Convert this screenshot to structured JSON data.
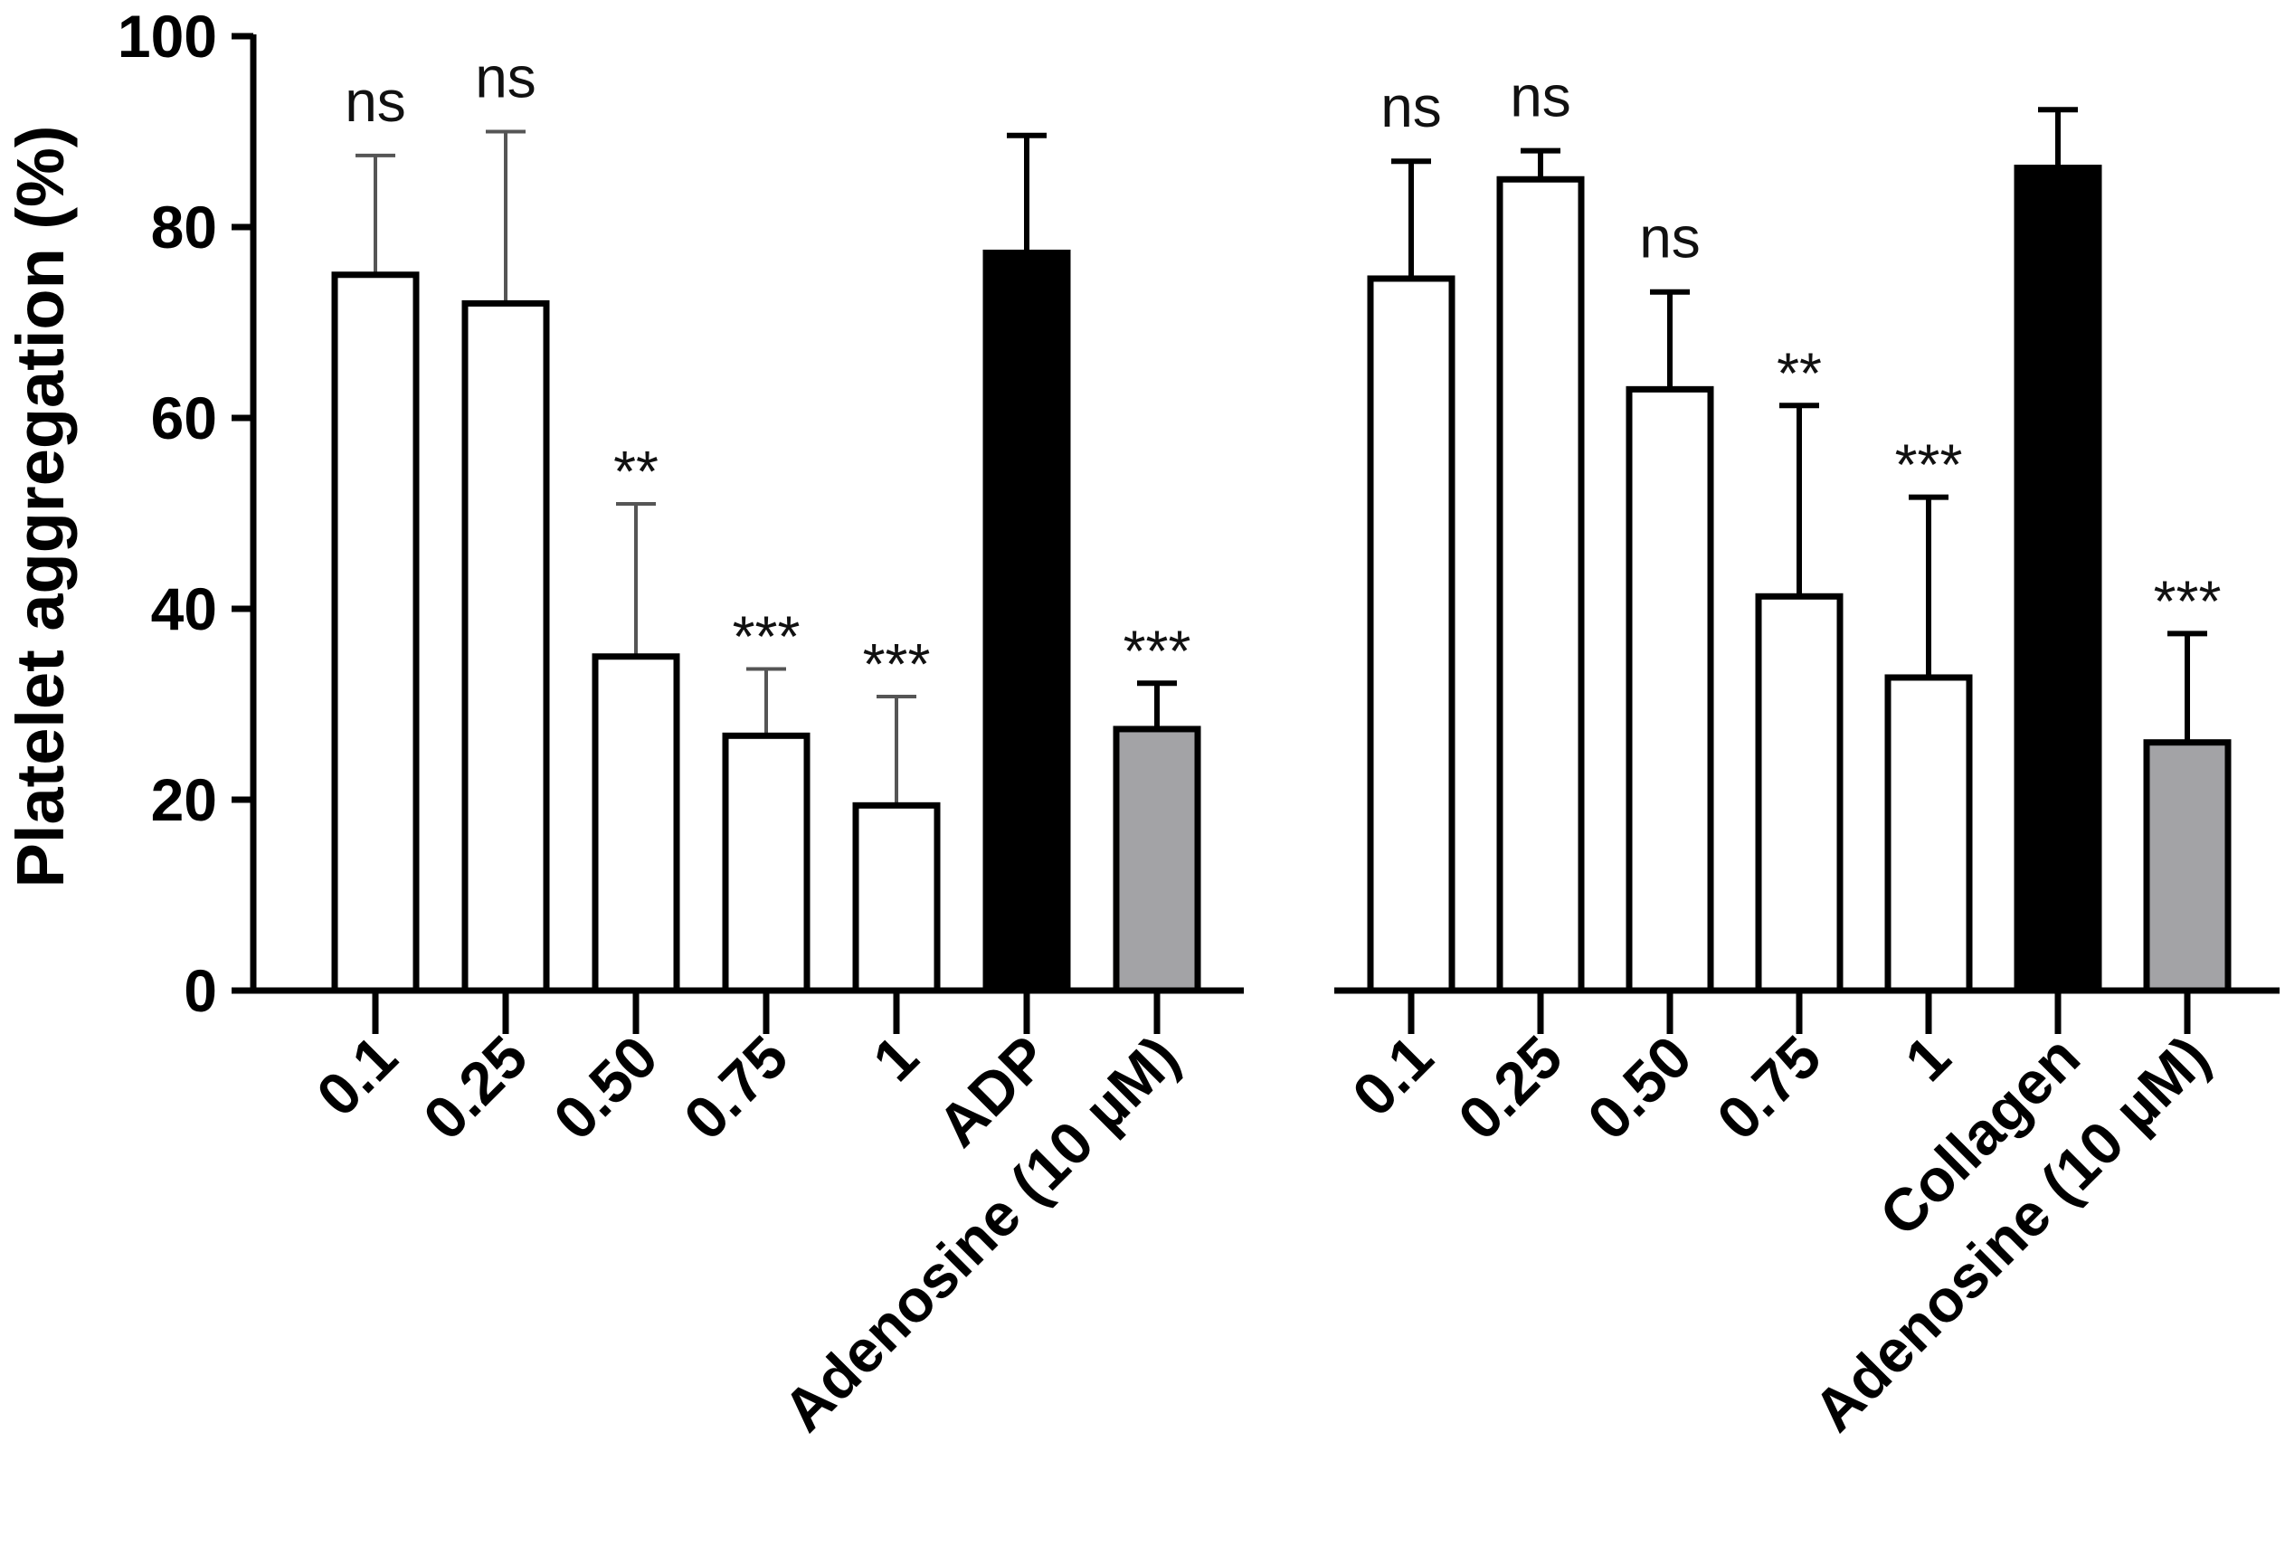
{
  "chart_data": [
    {
      "type": "bar",
      "panel": "left",
      "ylabel": "Platelet aggregation (%)",
      "ylim": [
        0,
        100
      ],
      "yticks": [
        "0",
        "20",
        "40",
        "60",
        "80",
        "100"
      ],
      "categories": [
        "0.1",
        "0.25",
        "0.50",
        "0.75",
        "1",
        "ADP",
        "Adenosine (10 µM)"
      ],
      "values": [
        75,
        72,
        35,
        26.7,
        19.4,
        77.3,
        27.4
      ],
      "errors": [
        12.5,
        18,
        16,
        7,
        11.4,
        12.3,
        4.8
      ],
      "significance": [
        "ns",
        "ns",
        "**",
        "***",
        "***",
        "",
        "***"
      ],
      "fills": [
        "#ffffff",
        "#ffffff",
        "#ffffff",
        "#ffffff",
        "#ffffff",
        "#000000",
        "#a3a3a6"
      ]
    },
    {
      "type": "bar",
      "panel": "right",
      "ylim": [
        0,
        100
      ],
      "categories": [
        "0.1",
        "0.25",
        "0.50",
        "0.75",
        "1",
        "Collagen",
        "Adenosine (10 µM)"
      ],
      "values": [
        74.6,
        85,
        63,
        41.3,
        32.8,
        86.2,
        26
      ],
      "errors": [
        12.3,
        3,
        10.2,
        20,
        18.9,
        6.1,
        11.4
      ],
      "significance": [
        "ns",
        "ns",
        "ns",
        "**",
        "***",
        "",
        "***"
      ],
      "fills": [
        "#ffffff",
        "#ffffff",
        "#ffffff",
        "#ffffff",
        "#ffffff",
        "#000000",
        "#a3a3a6"
      ]
    }
  ]
}
